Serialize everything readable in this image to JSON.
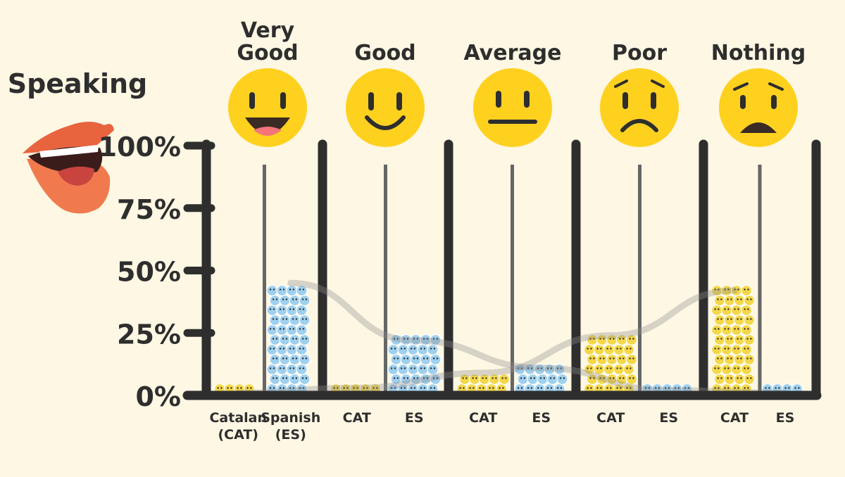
{
  "colors": {
    "background": "#fdf7e3",
    "stripe": "#f6d3cf",
    "axis": "#2e2e2e",
    "divider": "#666666",
    "catalan": "#f5d84a",
    "spanish": "#9fd0ef",
    "face": "#ffd11f",
    "lips": "#e8643e"
  },
  "chart_data": {
    "type": "bar",
    "title": "Speaking",
    "categories": [
      "Very Good",
      "Good",
      "Average",
      "Poor",
      "Nothing"
    ],
    "category_labels": [
      [
        "Very",
        "Good"
      ],
      [
        "Good"
      ],
      [
        "Average"
      ],
      [
        "Poor"
      ],
      [
        "Nothing"
      ]
    ],
    "category_icons": [
      "laughing-face-icon",
      "smiling-face-icon",
      "neutral-face-icon",
      "frowning-face-icon",
      "worried-face-icon"
    ],
    "series": [
      {
        "name": "Catalan (CAT)",
        "values": [
          1,
          3,
          9,
          24,
          42
        ]
      },
      {
        "name": "Spanish (ES)",
        "values": [
          45,
          22,
          11,
          2,
          1
        ]
      }
    ],
    "bar_labels": [
      [
        [
          "Catalan",
          "(CAT)"
        ],
        [
          "Spanish",
          "(ES)"
        ]
      ],
      [
        [
          "CAT"
        ],
        [
          "ES"
        ]
      ],
      [
        [
          "CAT"
        ],
        [
          "ES"
        ]
      ],
      [
        [
          "CAT"
        ],
        [
          "ES"
        ]
      ],
      [
        [
          "CAT"
        ],
        [
          "ES"
        ]
      ]
    ],
    "y_ticks": [
      "0%",
      "25%",
      "50%",
      "75%",
      "100%"
    ],
    "y_tick_values": [
      0,
      25,
      50,
      75,
      100
    ],
    "ylim": [
      0,
      100
    ],
    "xlabel": "",
    "ylabel": "",
    "legend": "none"
  }
}
